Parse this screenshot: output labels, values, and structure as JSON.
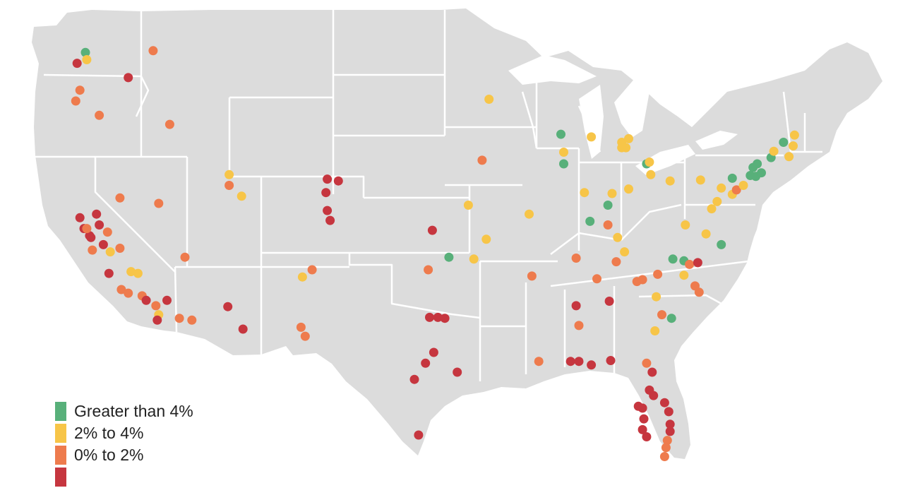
{
  "colors": {
    "land": "#dcdcdc",
    "border": "#ffffff",
    "water": "#ffffff",
    "green": "#58b07a",
    "yellow": "#f7c548",
    "orange": "#ee7b4d",
    "red": "#c6363f"
  },
  "legend": [
    {
      "category": "green",
      "label": "Greater than 4%"
    },
    {
      "category": "yellow",
      "label": "2% to 4%"
    },
    {
      "category": "orange",
      "label": "0% to 2%"
    },
    {
      "category": "red",
      "label": ""
    }
  ],
  "cities": [
    {
      "lon": -122.3,
      "lat": 47.6,
      "category": "green"
    },
    {
      "lon": -122.2,
      "lat": 47.2,
      "category": "yellow"
    },
    {
      "lon": -117.4,
      "lat": 47.7,
      "category": "orange"
    },
    {
      "lon": -122.9,
      "lat": 47.0,
      "category": "red"
    },
    {
      "lon": -119.2,
      "lat": 46.2,
      "category": "red"
    },
    {
      "lon": -122.7,
      "lat": 45.5,
      "category": "orange"
    },
    {
      "lon": -123.0,
      "lat": 44.9,
      "category": "orange"
    },
    {
      "lon": -121.3,
      "lat": 44.1,
      "category": "orange"
    },
    {
      "lon": -116.2,
      "lat": 43.6,
      "category": "orange"
    },
    {
      "lon": -121.5,
      "lat": 38.6,
      "category": "red"
    },
    {
      "lon": -122.4,
      "lat": 37.8,
      "category": "red"
    },
    {
      "lon": -122.0,
      "lat": 37.4,
      "category": "red"
    },
    {
      "lon": -121.9,
      "lat": 37.3,
      "category": "red"
    },
    {
      "lon": -121.3,
      "lat": 38.0,
      "category": "red"
    },
    {
      "lon": -122.7,
      "lat": 38.4,
      "category": "red"
    },
    {
      "lon": -122.2,
      "lat": 37.8,
      "category": "orange"
    },
    {
      "lon": -121.8,
      "lat": 36.6,
      "category": "orange"
    },
    {
      "lon": -120.7,
      "lat": 37.6,
      "category": "orange"
    },
    {
      "lon": -121.0,
      "lat": 36.9,
      "category": "red"
    },
    {
      "lon": -120.5,
      "lat": 36.5,
      "category": "yellow"
    },
    {
      "lon": -119.8,
      "lat": 36.7,
      "category": "orange"
    },
    {
      "lon": -120.6,
      "lat": 35.3,
      "category": "red"
    },
    {
      "lon": -119.0,
      "lat": 35.4,
      "category": "yellow"
    },
    {
      "lon": -118.5,
      "lat": 35.3,
      "category": "yellow"
    },
    {
      "lon": -119.7,
      "lat": 34.4,
      "category": "orange"
    },
    {
      "lon": -119.2,
      "lat": 34.2,
      "category": "orange"
    },
    {
      "lon": -118.2,
      "lat": 34.05,
      "category": "orange"
    },
    {
      "lon": -117.9,
      "lat": 33.8,
      "category": "red"
    },
    {
      "lon": -117.2,
      "lat": 33.5,
      "category": "orange"
    },
    {
      "lon": -117.0,
      "lat": 33.0,
      "category": "yellow"
    },
    {
      "lon": -117.1,
      "lat": 32.7,
      "category": "red"
    },
    {
      "lon": -116.4,
      "lat": 33.8,
      "category": "red"
    },
    {
      "lon": -115.5,
      "lat": 32.8,
      "category": "orange"
    },
    {
      "lon": -119.8,
      "lat": 39.5,
      "category": "orange"
    },
    {
      "lon": -115.1,
      "lat": 36.2,
      "category": "orange"
    },
    {
      "lon": -117.0,
      "lat": 39.2,
      "category": "orange"
    },
    {
      "lon": -114.6,
      "lat": 32.7,
      "category": "orange"
    },
    {
      "lon": -111.9,
      "lat": 40.8,
      "category": "yellow"
    },
    {
      "lon": -111.9,
      "lat": 40.2,
      "category": "orange"
    },
    {
      "lon": -111.0,
      "lat": 39.6,
      "category": "yellow"
    },
    {
      "lon": -112.0,
      "lat": 33.45,
      "category": "red"
    },
    {
      "lon": -110.9,
      "lat": 32.2,
      "category": "red"
    },
    {
      "lon": -104.8,
      "lat": 40.55,
      "category": "red"
    },
    {
      "lon": -104.0,
      "lat": 40.45,
      "category": "red"
    },
    {
      "lon": -104.9,
      "lat": 39.8,
      "category": "red"
    },
    {
      "lon": -104.8,
      "lat": 38.8,
      "category": "red"
    },
    {
      "lon": -104.6,
      "lat": 38.25,
      "category": "red"
    },
    {
      "lon": -106.6,
      "lat": 35.1,
      "category": "yellow"
    },
    {
      "lon": -105.9,
      "lat": 35.5,
      "category": "orange"
    },
    {
      "lon": -106.7,
      "lat": 32.3,
      "category": "orange"
    },
    {
      "lon": -106.4,
      "lat": 31.8,
      "category": "orange"
    },
    {
      "lon": -97.5,
      "lat": 35.5,
      "category": "orange"
    },
    {
      "lon": -97.2,
      "lat": 37.7,
      "category": "red"
    },
    {
      "lon": -96.0,
      "lat": 36.2,
      "category": "green"
    },
    {
      "lon": -97.4,
      "lat": 32.85,
      "category": "red"
    },
    {
      "lon": -96.8,
      "lat": 32.85,
      "category": "red"
    },
    {
      "lon": -96.3,
      "lat": 32.8,
      "category": "red"
    },
    {
      "lon": -97.7,
      "lat": 30.3,
      "category": "red"
    },
    {
      "lon": -97.1,
      "lat": 30.9,
      "category": "red"
    },
    {
      "lon": -98.5,
      "lat": 29.4,
      "category": "red"
    },
    {
      "lon": -95.4,
      "lat": 29.8,
      "category": "red"
    },
    {
      "lon": -98.2,
      "lat": 26.3,
      "category": "red"
    },
    {
      "lon": -93.1,
      "lat": 45.0,
      "category": "yellow"
    },
    {
      "lon": -93.6,
      "lat": 41.6,
      "category": "orange"
    },
    {
      "lon": -94.6,
      "lat": 39.1,
      "category": "yellow"
    },
    {
      "lon": -90.2,
      "lat": 38.6,
      "category": "yellow"
    },
    {
      "lon": -93.3,
      "lat": 37.2,
      "category": "yellow"
    },
    {
      "lon": -94.2,
      "lat": 36.1,
      "category": "yellow"
    },
    {
      "lon": -87.9,
      "lat": 43.05,
      "category": "green"
    },
    {
      "lon": -87.7,
      "lat": 42.05,
      "category": "yellow"
    },
    {
      "lon": -87.7,
      "lat": 41.4,
      "category": "green"
    },
    {
      "lon": -85.7,
      "lat": 42.9,
      "category": "yellow"
    },
    {
      "lon": -83.0,
      "lat": 42.8,
      "category": "yellow"
    },
    {
      "lon": -83.5,
      "lat": 42.6,
      "category": "yellow"
    },
    {
      "lon": -83.2,
      "lat": 42.3,
      "category": "yellow"
    },
    {
      "lon": -83.5,
      "lat": 42.3,
      "category": "yellow"
    },
    {
      "lon": -86.2,
      "lat": 39.8,
      "category": "yellow"
    },
    {
      "lon": -84.5,
      "lat": 39.1,
      "category": "green"
    },
    {
      "lon": -85.8,
      "lat": 38.2,
      "category": "green"
    },
    {
      "lon": -84.5,
      "lat": 38.0,
      "category": "orange"
    },
    {
      "lon": -84.2,
      "lat": 39.75,
      "category": "yellow"
    },
    {
      "lon": -83.0,
      "lat": 40.0,
      "category": "yellow"
    },
    {
      "lon": -81.7,
      "lat": 41.4,
      "category": "green"
    },
    {
      "lon": -81.5,
      "lat": 41.5,
      "category": "yellow"
    },
    {
      "lon": -81.4,
      "lat": 40.8,
      "category": "yellow"
    },
    {
      "lon": -80.0,
      "lat": 40.45,
      "category": "yellow"
    },
    {
      "lon": -86.8,
      "lat": 36.15,
      "category": "orange"
    },
    {
      "lon": -85.3,
      "lat": 35.0,
      "category": "orange"
    },
    {
      "lon": -83.9,
      "lat": 35.95,
      "category": "orange"
    },
    {
      "lon": -90.0,
      "lat": 35.15,
      "category": "orange"
    },
    {
      "lon": -86.8,
      "lat": 33.5,
      "category": "red"
    },
    {
      "lon": -86.6,
      "lat": 32.4,
      "category": "orange"
    },
    {
      "lon": -84.4,
      "lat": 33.75,
      "category": "red"
    },
    {
      "lon": -81.0,
      "lat": 34.0,
      "category": "yellow"
    },
    {
      "lon": -82.4,
      "lat": 34.85,
      "category": "orange"
    },
    {
      "lon": -82.0,
      "lat": 34.95,
      "category": "orange"
    },
    {
      "lon": -80.9,
      "lat": 35.25,
      "category": "orange"
    },
    {
      "lon": -79.8,
      "lat": 36.1,
      "category": "green"
    },
    {
      "lon": -79.0,
      "lat": 36.0,
      "category": "green"
    },
    {
      "lon": -78.6,
      "lat": 35.8,
      "category": "orange"
    },
    {
      "lon": -78.0,
      "lat": 35.9,
      "category": "red"
    },
    {
      "lon": -77.9,
      "lat": 34.25,
      "category": "orange"
    },
    {
      "lon": -78.2,
      "lat": 34.6,
      "category": "orange"
    },
    {
      "lon": -79.9,
      "lat": 32.8,
      "category": "green"
    },
    {
      "lon": -80.6,
      "lat": 33.0,
      "category": "orange"
    },
    {
      "lon": -79.0,
      "lat": 35.2,
      "category": "yellow"
    },
    {
      "lon": -81.1,
      "lat": 32.1,
      "category": "yellow"
    },
    {
      "lon": -81.7,
      "lat": 30.3,
      "category": "orange"
    },
    {
      "lon": -77.4,
      "lat": 37.5,
      "category": "yellow"
    },
    {
      "lon": -76.3,
      "lat": 36.9,
      "category": "green"
    },
    {
      "lon": -78.9,
      "lat": 38.0,
      "category": "yellow"
    },
    {
      "lon": -77.0,
      "lat": 38.9,
      "category": "yellow"
    },
    {
      "lon": -76.6,
      "lat": 39.3,
      "category": "yellow"
    },
    {
      "lon": -75.5,
      "lat": 39.7,
      "category": "yellow"
    },
    {
      "lon": -75.2,
      "lat": 39.95,
      "category": "orange"
    },
    {
      "lon": -77.8,
      "lat": 40.5,
      "category": "yellow"
    },
    {
      "lon": -74.7,
      "lat": 40.2,
      "category": "yellow"
    },
    {
      "lon": -76.3,
      "lat": 40.05,
      "category": "yellow"
    },
    {
      "lon": -75.5,
      "lat": 40.6,
      "category": "green"
    },
    {
      "lon": -74.2,
      "lat": 40.75,
      "category": "green"
    },
    {
      "lon": -73.8,
      "lat": 40.7,
      "category": "green"
    },
    {
      "lon": -74.0,
      "lat": 41.2,
      "category": "green"
    },
    {
      "lon": -73.4,
      "lat": 40.9,
      "category": "green"
    },
    {
      "lon": -73.7,
      "lat": 41.4,
      "category": "green"
    },
    {
      "lon": -72.7,
      "lat": 41.75,
      "category": "green"
    },
    {
      "lon": -72.5,
      "lat": 42.1,
      "category": "yellow"
    },
    {
      "lon": -71.8,
      "lat": 42.6,
      "category": "green"
    },
    {
      "lon": -71.1,
      "lat": 42.4,
      "category": "yellow"
    },
    {
      "lon": -71.4,
      "lat": 41.8,
      "category": "yellow"
    },
    {
      "lon": -71.0,
      "lat": 43.0,
      "category": "yellow"
    },
    {
      "lon": -89.5,
      "lat": 30.4,
      "category": "orange"
    },
    {
      "lon": -87.2,
      "lat": 30.4,
      "category": "red"
    },
    {
      "lon": -86.6,
      "lat": 30.4,
      "category": "red"
    },
    {
      "lon": -85.7,
      "lat": 30.2,
      "category": "red"
    },
    {
      "lon": -84.3,
      "lat": 30.45,
      "category": "red"
    },
    {
      "lon": -81.3,
      "lat": 29.8,
      "category": "red"
    },
    {
      "lon": -81.5,
      "lat": 28.8,
      "category": "red"
    },
    {
      "lon": -81.2,
      "lat": 28.5,
      "category": "red"
    },
    {
      "lon": -82.3,
      "lat": 27.9,
      "category": "red"
    },
    {
      "lon": -82.0,
      "lat": 27.8,
      "category": "red"
    },
    {
      "lon": -81.9,
      "lat": 27.2,
      "category": "red"
    },
    {
      "lon": -82.0,
      "lat": 26.6,
      "category": "red"
    },
    {
      "lon": -81.7,
      "lat": 26.2,
      "category": "red"
    },
    {
      "lon": -80.4,
      "lat": 28.1,
      "category": "red"
    },
    {
      "lon": -80.1,
      "lat": 27.6,
      "category": "red"
    },
    {
      "lon": -80.0,
      "lat": 26.9,
      "category": "red"
    },
    {
      "lon": -80.0,
      "lat": 26.5,
      "category": "red"
    },
    {
      "lon": -80.2,
      "lat": 26.0,
      "category": "orange"
    },
    {
      "lon": -80.3,
      "lat": 25.6,
      "category": "orange"
    },
    {
      "lon": -80.4,
      "lat": 25.1,
      "category": "orange"
    },
    {
      "lon": -83.8,
      "lat": 37.3,
      "category": "yellow"
    },
    {
      "lon": -83.3,
      "lat": 36.5,
      "category": "yellow"
    }
  ]
}
